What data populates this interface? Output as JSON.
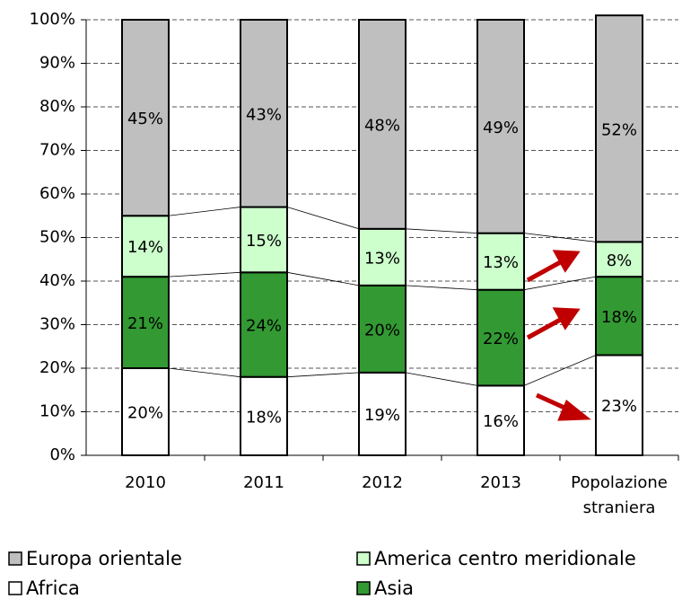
{
  "chart_data": {
    "type": "stacked_bar",
    "categories": [
      "2010",
      "2011",
      "2012",
      "2013",
      "Popolazione straniera"
    ],
    "series": [
      {
        "name": "Africa",
        "color": "#ffffff",
        "values": [
          20,
          18,
          19,
          16,
          23
        ],
        "value_labels": [
          "20%",
          "18%",
          "19%",
          "16%",
          "23%"
        ]
      },
      {
        "name": "Asia",
        "color": "#339933",
        "values": [
          21,
          24,
          20,
          22,
          18
        ],
        "value_labels": [
          "21%",
          "24%",
          "20%",
          "22%",
          "18%"
        ]
      },
      {
        "name": "America centro meridionale",
        "color": "#ccffcc",
        "values": [
          14,
          15,
          13,
          13,
          8
        ],
        "value_labels": [
          "14%",
          "15%",
          "13%",
          "13%",
          "8%"
        ]
      },
      {
        "name": "Europa orientale",
        "color": "#bfbfbf",
        "values": [
          45,
          43,
          48,
          49,
          52
        ],
        "value_labels": [
          "45%",
          "43%",
          "48%",
          "49%",
          "52%"
        ]
      }
    ],
    "ylim": [
      0,
      100
    ],
    "yticks": [
      {
        "value": 0,
        "label": "0%"
      },
      {
        "value": 10,
        "label": "10%"
      },
      {
        "value": 20,
        "label": "20%"
      },
      {
        "value": 30,
        "label": "30%"
      },
      {
        "value": 40,
        "label": "40%"
      },
      {
        "value": 50,
        "label": "50%"
      },
      {
        "value": 60,
        "label": "60%"
      },
      {
        "value": 70,
        "label": "70%"
      },
      {
        "value": 80,
        "label": "80%"
      },
      {
        "value": 90,
        "label": "90%"
      },
      {
        "value": 100,
        "label": "100%"
      }
    ],
    "grid": true
  }
}
